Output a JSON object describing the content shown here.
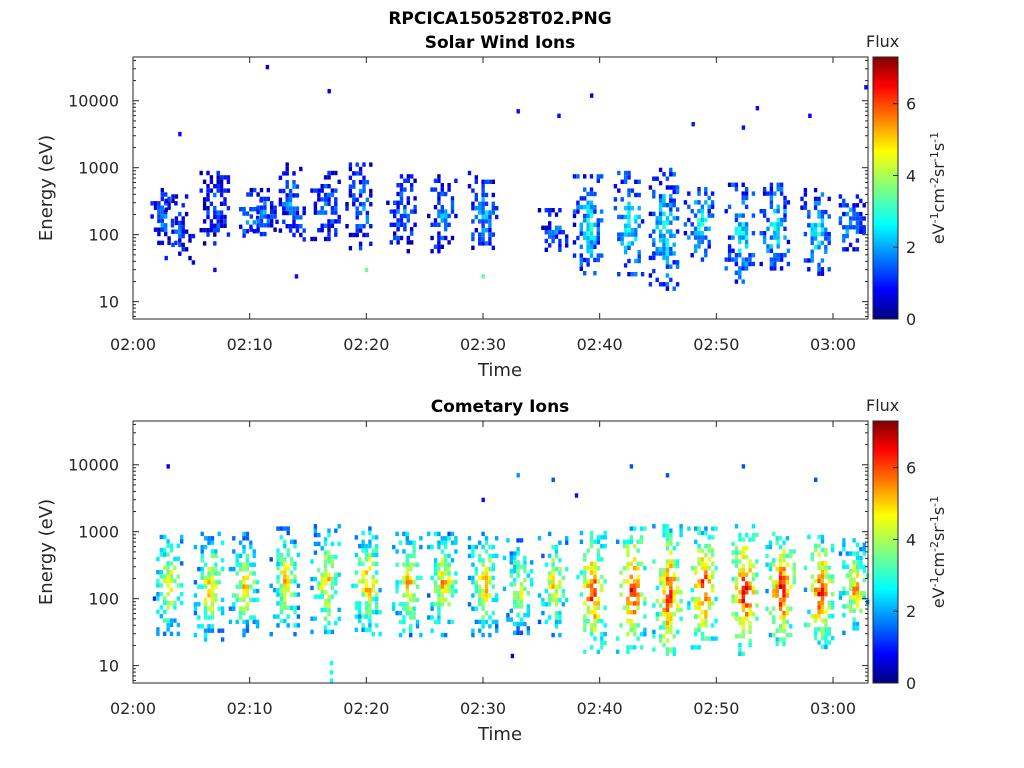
{
  "figure_title": "RPCICA150528T02.PNG",
  "colors": {
    "colormap": [
      "#00007f",
      "#0000ff",
      "#007fff",
      "#00ffff",
      "#7fff7f",
      "#ffff00",
      "#ff7f00",
      "#ff0000",
      "#7f0000"
    ],
    "axis": "#262626"
  },
  "chart_data": [
    {
      "type": "heatmap",
      "title": "Solar Wind Ions",
      "xlabel": "Time",
      "ylabel": "Energy (eV)",
      "x_ticks": [
        "02:00",
        "02:10",
        "02:20",
        "02:30",
        "02:40",
        "02:50",
        "03:00"
      ],
      "x_range_minutes": [
        0,
        63
      ],
      "y_ticks": [
        "10",
        "100",
        "1000",
        "10000"
      ],
      "y_range_eV": [
        5.5,
        45000
      ],
      "y_scale": "log",
      "colorbar": {
        "title": "Flux",
        "label": "eV-1cm-2sr-1s-1",
        "ticks": [
          "0",
          "2",
          "4",
          "6"
        ],
        "range": [
          0,
          7.3
        ]
      },
      "bursts": [
        {
          "t": 2.5,
          "e_lo": 80,
          "e_hi": 500,
          "flux": 1.6
        },
        {
          "t": 4.0,
          "e_lo": 40,
          "e_hi": 400,
          "flux": 1.2
        },
        {
          "t": 7.0,
          "e_lo": 70,
          "e_hi": 900,
          "flux": 1.3
        },
        {
          "t": 9.8,
          "e_lo": 100,
          "e_hi": 350,
          "flux": 1.9
        },
        {
          "t": 11.0,
          "e_lo": 90,
          "e_hi": 500,
          "flux": 1.7
        },
        {
          "t": 13.5,
          "e_lo": 80,
          "e_hi": 1200,
          "flux": 1.6
        },
        {
          "t": 16.5,
          "e_lo": 80,
          "e_hi": 900,
          "flux": 1.5
        },
        {
          "t": 19.5,
          "e_lo": 60,
          "e_hi": 1200,
          "flux": 1.6
        },
        {
          "t": 23.0,
          "e_lo": 60,
          "e_hi": 800,
          "flux": 1.6
        },
        {
          "t": 26.5,
          "e_lo": 60,
          "e_hi": 800,
          "flux": 1.7
        },
        {
          "t": 30.0,
          "e_lo": 60,
          "e_hi": 900,
          "flux": 1.9
        },
        {
          "t": 36.0,
          "e_lo": 60,
          "e_hi": 250,
          "flux": 1.5
        },
        {
          "t": 39.0,
          "e_lo": 25,
          "e_hi": 800,
          "flux": 2.3
        },
        {
          "t": 42.5,
          "e_lo": 25,
          "e_hi": 900,
          "flux": 2.5
        },
        {
          "t": 45.5,
          "e_lo": 15,
          "e_hi": 1000,
          "flux": 2.4
        },
        {
          "t": 48.5,
          "e_lo": 40,
          "e_hi": 600,
          "flux": 2.5
        },
        {
          "t": 52.0,
          "e_lo": 20,
          "e_hi": 600,
          "flux": 2.4
        },
        {
          "t": 55.0,
          "e_lo": 30,
          "e_hi": 600,
          "flux": 2.5
        },
        {
          "t": 58.5,
          "e_lo": 25,
          "e_hi": 500,
          "flux": 2.5
        },
        {
          "t": 61.5,
          "e_lo": 60,
          "e_hi": 400,
          "flux": 2.0
        }
      ],
      "sparse_points": [
        {
          "t": 11.5,
          "e": 32000,
          "flux": 0.8
        },
        {
          "t": 16.8,
          "e": 14000,
          "flux": 0.8
        },
        {
          "t": 33.0,
          "e": 7000,
          "flux": 1.0
        },
        {
          "t": 36.5,
          "e": 6000,
          "flux": 1.0
        },
        {
          "t": 39.3,
          "e": 12000,
          "flux": 0.9
        },
        {
          "t": 48.0,
          "e": 4500,
          "flux": 1.1
        },
        {
          "t": 52.3,
          "e": 4000,
          "flux": 1.0
        },
        {
          "t": 53.5,
          "e": 7800,
          "flux": 1.0
        },
        {
          "t": 58.0,
          "e": 6000,
          "flux": 0.9
        },
        {
          "t": 62.8,
          "e": 16000,
          "flux": 1.0
        },
        {
          "t": 4.0,
          "e": 3200,
          "flux": 1.0
        },
        {
          "t": 7.0,
          "e": 30,
          "flux": 1.0
        },
        {
          "t": 14.0,
          "e": 24,
          "flux": 1.0
        },
        {
          "t": 20.0,
          "e": 30,
          "flux": 3.5
        },
        {
          "t": 30.0,
          "e": 24,
          "flux": 3.5
        }
      ]
    },
    {
      "type": "heatmap",
      "title": "Cometary Ions",
      "xlabel": "Time",
      "ylabel": "Energy (eV)",
      "x_ticks": [
        "02:00",
        "02:10",
        "02:20",
        "02:30",
        "02:40",
        "02:50",
        "03:00"
      ],
      "x_range_minutes": [
        0,
        63
      ],
      "y_ticks": [
        "10",
        "100",
        "1000",
        "10000"
      ],
      "y_range_eV": [
        5.5,
        45000
      ],
      "y_scale": "log",
      "colorbar": {
        "title": "Flux",
        "label": "eV-1cm-2sr-1s-1",
        "ticks": [
          "0",
          "2",
          "4",
          "6"
        ],
        "range": [
          0,
          7.3
        ]
      },
      "bursts": [
        {
          "t": 3.0,
          "e_lo": 30,
          "e_hi": 900,
          "flux": 4.3
        },
        {
          "t": 6.5,
          "e_lo": 25,
          "e_hi": 1000,
          "flux": 4.3
        },
        {
          "t": 9.5,
          "e_lo": 30,
          "e_hi": 1000,
          "flux": 4.3
        },
        {
          "t": 13.0,
          "e_lo": 30,
          "e_hi": 1200,
          "flux": 4.3
        },
        {
          "t": 16.5,
          "e_lo": 30,
          "e_hi": 1300,
          "flux": 4.4
        },
        {
          "t": 20.0,
          "e_lo": 30,
          "e_hi": 1200,
          "flux": 4.6
        },
        {
          "t": 23.5,
          "e_lo": 30,
          "e_hi": 1000,
          "flux": 4.6
        },
        {
          "t": 26.5,
          "e_lo": 30,
          "e_hi": 1000,
          "flux": 4.6
        },
        {
          "t": 30.0,
          "e_lo": 30,
          "e_hi": 1000,
          "flux": 4.6
        },
        {
          "t": 33.0,
          "e_lo": 30,
          "e_hi": 800,
          "flux": 4.0
        },
        {
          "t": 36.0,
          "e_lo": 30,
          "e_hi": 1000,
          "flux": 4.2
        },
        {
          "t": 39.3,
          "e_lo": 15,
          "e_hi": 1200,
          "flux": 5.4
        },
        {
          "t": 42.7,
          "e_lo": 15,
          "e_hi": 1200,
          "flux": 5.6
        },
        {
          "t": 45.8,
          "e_lo": 12,
          "e_hi": 1300,
          "flux": 5.6
        },
        {
          "t": 48.8,
          "e_lo": 20,
          "e_hi": 1200,
          "flux": 5.6
        },
        {
          "t": 52.3,
          "e_lo": 15,
          "e_hi": 1300,
          "flux": 5.8
        },
        {
          "t": 55.5,
          "e_lo": 20,
          "e_hi": 1000,
          "flux": 5.8
        },
        {
          "t": 58.8,
          "e_lo": 20,
          "e_hi": 900,
          "flux": 5.6
        },
        {
          "t": 61.8,
          "e_lo": 30,
          "e_hi": 800,
          "flux": 4.6
        }
      ],
      "sparse_points": [
        {
          "t": 3.0,
          "e": 9500,
          "flux": 0.8
        },
        {
          "t": 33.0,
          "e": 7000,
          "flux": 2.0
        },
        {
          "t": 36.0,
          "e": 6000,
          "flux": 1.5
        },
        {
          "t": 42.7,
          "e": 9500,
          "flux": 1.5
        },
        {
          "t": 45.8,
          "e": 7000,
          "flux": 1.5
        },
        {
          "t": 52.3,
          "e": 9500,
          "flux": 1.5
        },
        {
          "t": 58.5,
          "e": 6000,
          "flux": 1.5
        },
        {
          "t": 17.0,
          "e": 6.0,
          "flux": 2.8
        },
        {
          "t": 17.0,
          "e": 8.0,
          "flux": 2.8
        },
        {
          "t": 17.0,
          "e": 11.0,
          "flux": 2.8
        },
        {
          "t": 32.5,
          "e": 14,
          "flux": 0.8
        },
        {
          "t": 38.0,
          "e": 3500,
          "flux": 1.0
        },
        {
          "t": 30.0,
          "e": 3000,
          "flux": 1.0
        }
      ]
    }
  ]
}
